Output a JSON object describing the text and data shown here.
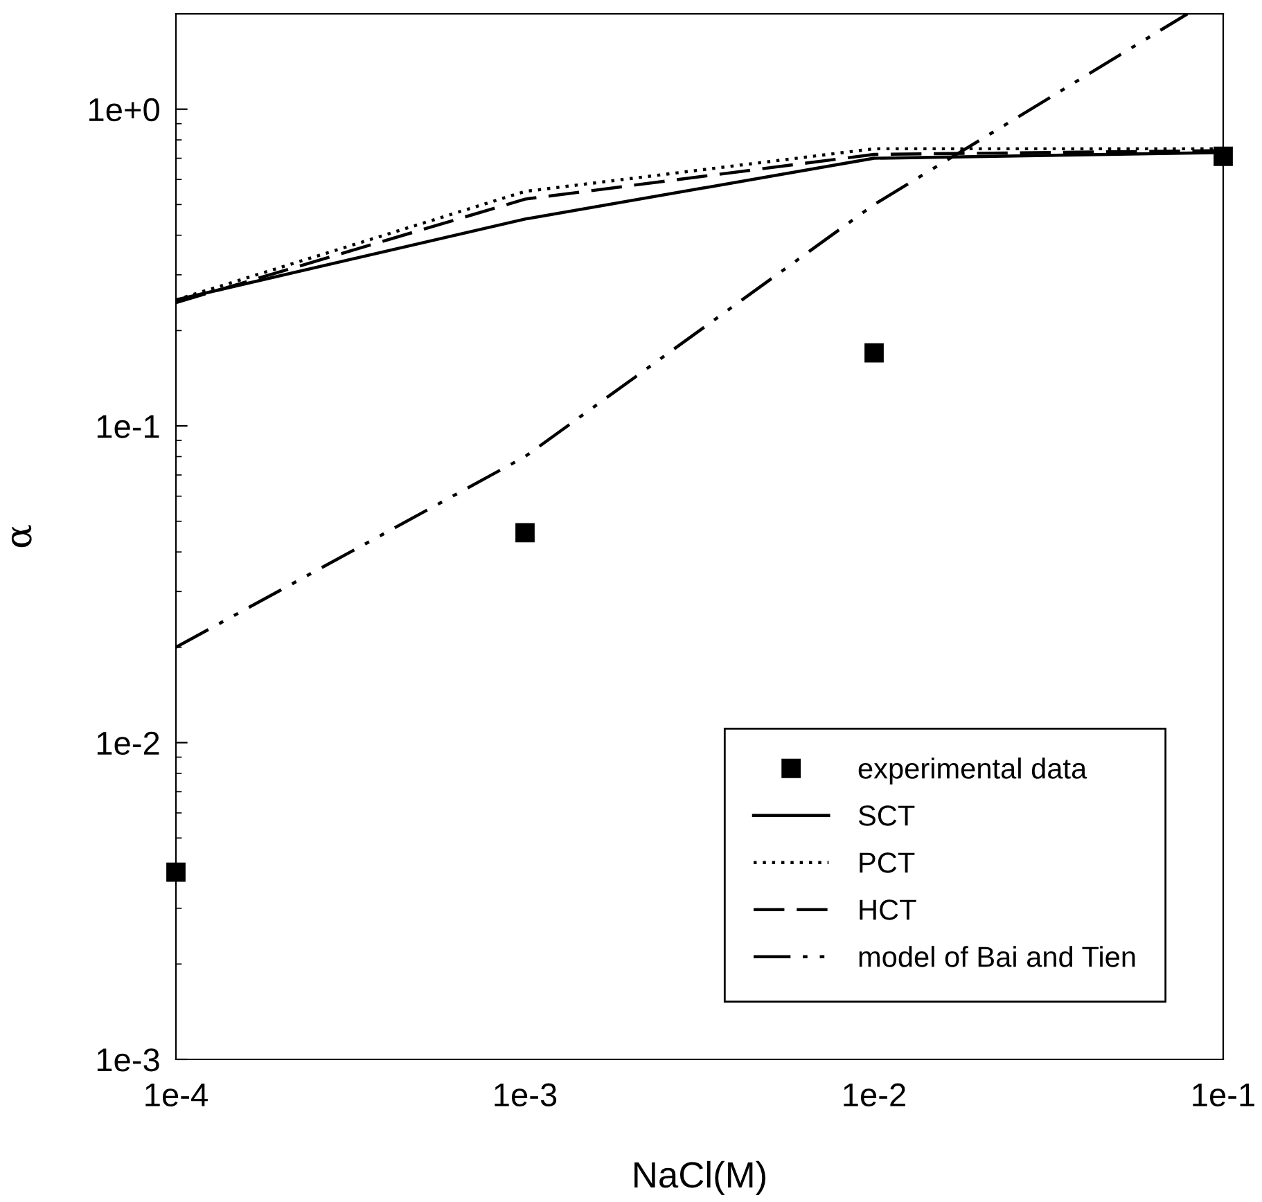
{
  "chart_data": {
    "type": "line",
    "xlabel": "NaCl(M)",
    "ylabel": "α",
    "log": "xy",
    "grid": false,
    "legend": "bottom right",
    "xlim": [
      0.0001,
      0.1
    ],
    "xticks": [
      {
        "value": 0.0001,
        "label": "1e-4"
      },
      {
        "value": 0.001,
        "label": "1e-3"
      },
      {
        "value": 0.01,
        "label": "1e-2"
      },
      {
        "value": 0.1,
        "label": "1e-1"
      }
    ],
    "ylim": [
      0.001,
      2.0
    ],
    "yticks": [
      {
        "value": 0.001,
        "label": "1e-3"
      },
      {
        "value": 0.01,
        "label": "1e-2"
      },
      {
        "value": 0.1,
        "label": "1e-1"
      },
      {
        "value": 1,
        "label": "1e+0"
      }
    ],
    "series": [
      {
        "name": "experimental data",
        "type": "scatter",
        "marker": "square",
        "color": "#000000",
        "x": [
          0.0001,
          0.001,
          0.01,
          0.1
        ],
        "values": [
          0.0039,
          0.046,
          0.17,
          0.71
        ]
      },
      {
        "name": "SCT",
        "line_style": "solid",
        "color": "#000000",
        "x": [
          0.0001,
          0.001,
          0.01,
          0.1
        ],
        "values": [
          0.25,
          0.45,
          0.7,
          0.73
        ]
      },
      {
        "name": "PCT",
        "line_style": "dotted",
        "color": "#000000",
        "x": [
          0.0001,
          0.001,
          0.01,
          0.1
        ],
        "values": [
          0.25,
          0.55,
          0.75,
          0.75
        ]
      },
      {
        "name": "HCT",
        "line_style": "dashed",
        "color": "#000000",
        "x": [
          0.0001,
          0.001,
          0.01,
          0.1
        ],
        "values": [
          0.245,
          0.52,
          0.72,
          0.74
        ]
      },
      {
        "name": "model of Bai and Tien",
        "line_style": "dashdotdot",
        "color": "#000000",
        "x": [
          0.0001,
          0.001,
          0.01,
          0.079
        ],
        "values": [
          0.02,
          0.08,
          0.5,
          2.0
        ]
      }
    ]
  }
}
